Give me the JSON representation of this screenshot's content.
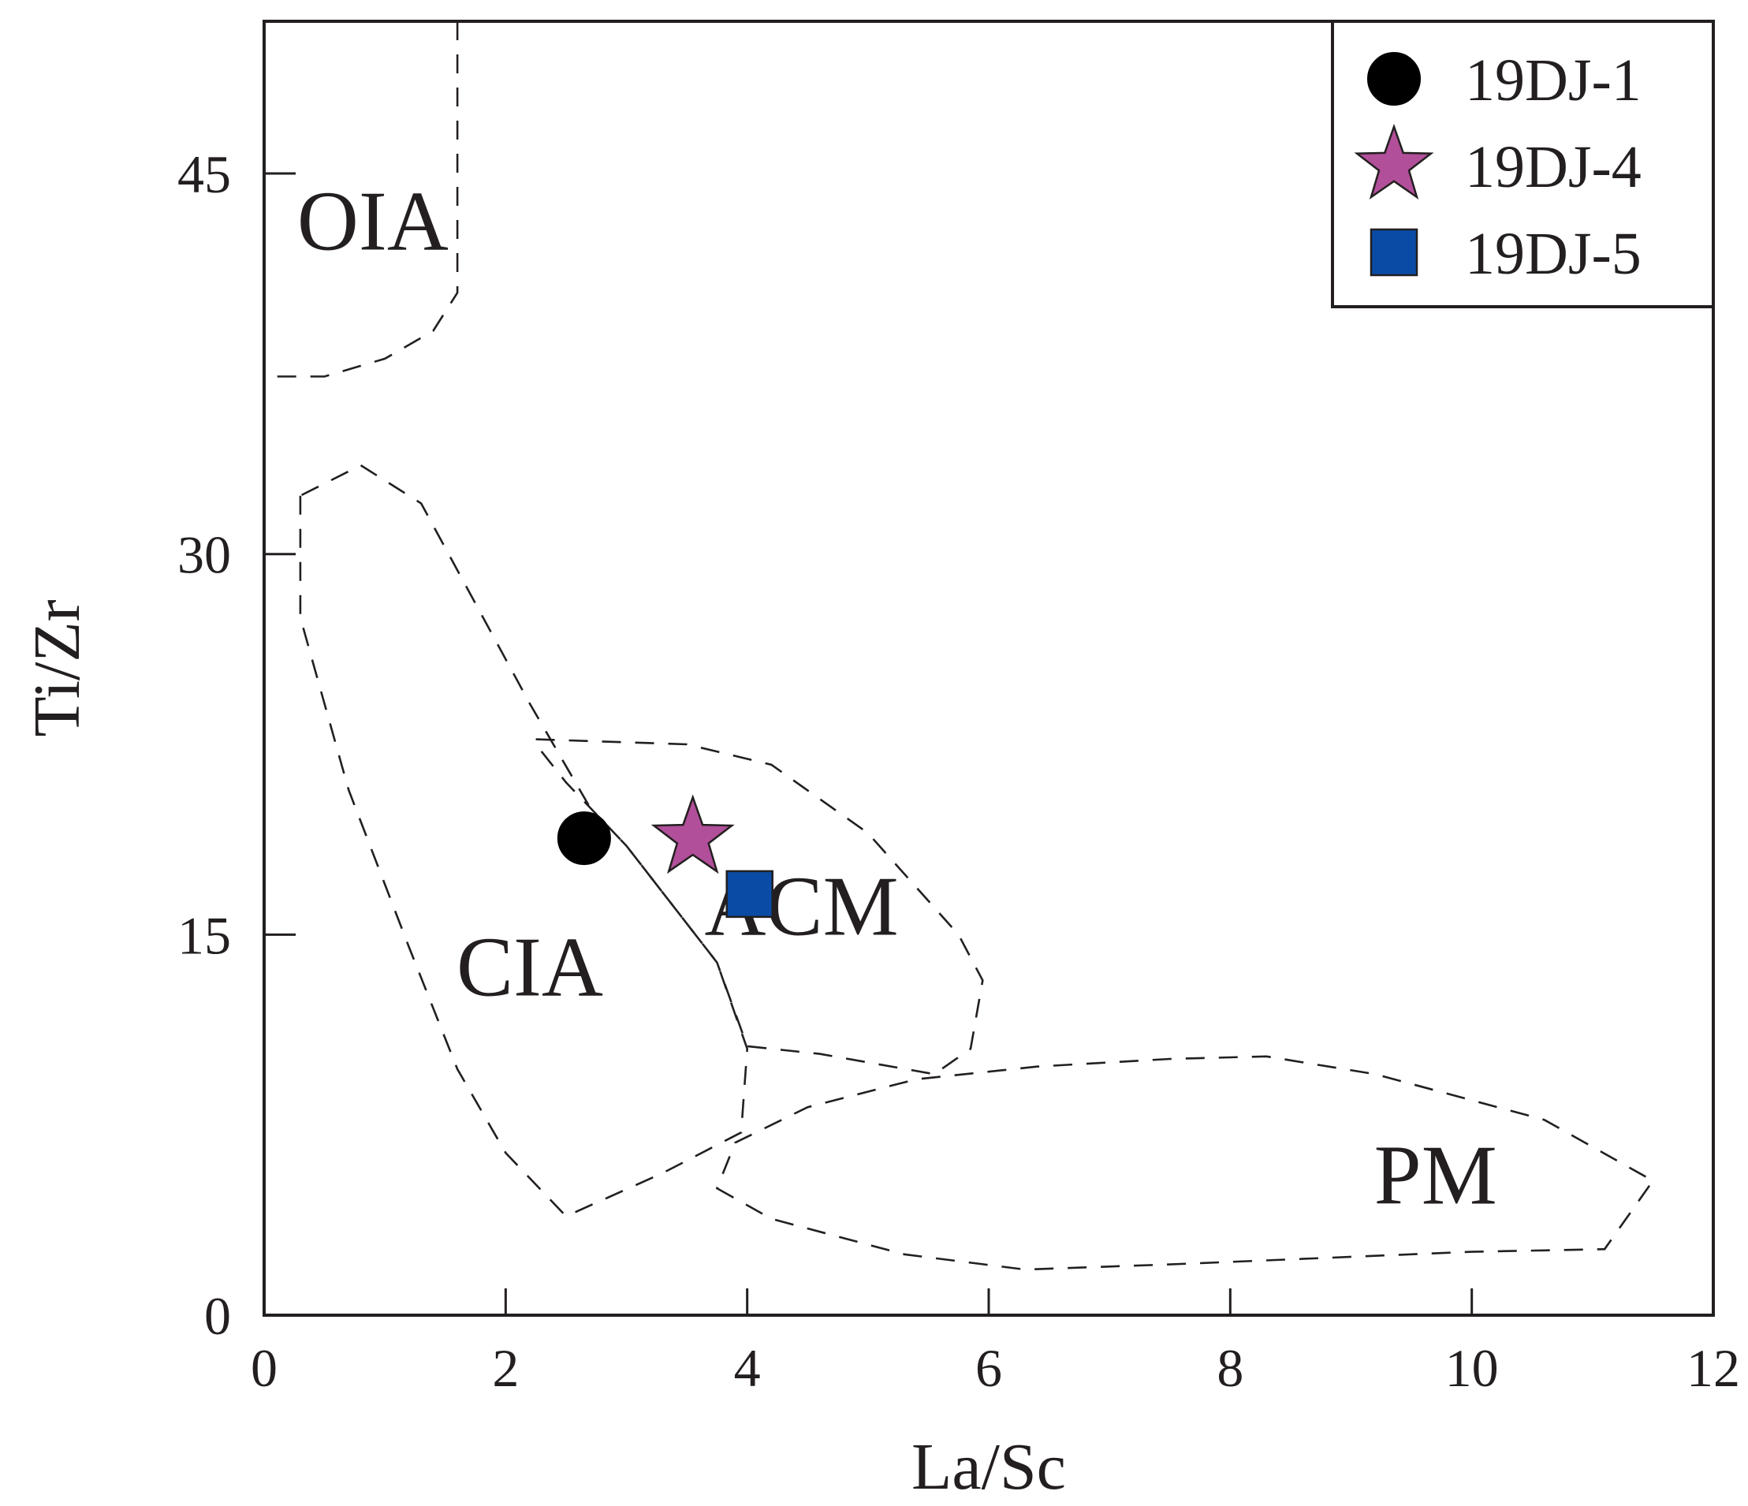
{
  "chart_data": {
    "type": "scatter",
    "title": "",
    "xlabel": "La/Sc",
    "ylabel": "Ti/Zr",
    "xlim": [
      0,
      12
    ],
    "ylim": [
      0,
      51
    ],
    "xticks": [
      0,
      2,
      4,
      6,
      8,
      10,
      12
    ],
    "yticks": [
      0,
      15,
      30,
      45
    ],
    "grid": false,
    "legend_position": "top-right",
    "series": [
      {
        "name": "19DJ-1",
        "marker": "circle",
        "color": "#000000",
        "x": [
          2.65
        ],
        "y": [
          18.8
        ]
      },
      {
        "name": "19DJ-4",
        "marker": "star",
        "color": "#b24f9a",
        "x": [
          3.55
        ],
        "y": [
          18.8
        ]
      },
      {
        "name": "19DJ-5",
        "marker": "square",
        "color": "#0a4ba5",
        "x": [
          4.02
        ],
        "y": [
          16.6
        ]
      }
    ],
    "regions": [
      {
        "name": "OIA",
        "label_at": [
          0.9,
          42.0
        ],
        "outline": [
          [
            1.6,
            51.0
          ],
          [
            1.6,
            40.3
          ],
          [
            1.4,
            38.8
          ],
          [
            1.0,
            37.7
          ],
          [
            0.5,
            37.0
          ],
          [
            0.0,
            37.0
          ]
        ],
        "closed": false
      },
      {
        "name": "CIA",
        "label_at": [
          2.2,
          12.6
        ],
        "outline": [
          [
            0.3,
            32.3
          ],
          [
            0.3,
            27.5
          ],
          [
            0.7,
            20.7
          ],
          [
            1.2,
            14.5
          ],
          [
            1.6,
            9.7
          ],
          [
            2.0,
            6.4
          ],
          [
            2.5,
            3.9
          ],
          [
            3.3,
            5.6
          ],
          [
            3.95,
            7.2
          ],
          [
            4.0,
            10.5
          ],
          [
            3.75,
            13.9
          ],
          [
            3.0,
            18.5
          ],
          [
            2.7,
            20.0
          ],
          [
            2.2,
            24.1
          ],
          [
            1.3,
            32.0
          ],
          [
            0.8,
            33.5
          ]
        ],
        "closed": true
      },
      {
        "name": "ACM",
        "label_at": [
          4.45,
          15.0
        ],
        "outline": [
          [
            2.25,
            22.7
          ],
          [
            3.5,
            22.5
          ],
          [
            4.2,
            21.7
          ],
          [
            5.0,
            19.0
          ],
          [
            5.75,
            15.0
          ],
          [
            5.95,
            13.2
          ],
          [
            5.85,
            10.5
          ],
          [
            5.55,
            9.5
          ],
          [
            4.6,
            10.3
          ],
          [
            4.0,
            10.6
          ],
          [
            3.75,
            13.9
          ],
          [
            3.0,
            18.5
          ],
          [
            2.5,
            21.0
          ],
          [
            2.3,
            22.2
          ]
        ],
        "closed": true
      },
      {
        "name": "PM",
        "label_at": [
          9.7,
          4.4
        ],
        "outline": [
          [
            3.75,
            5.0
          ],
          [
            4.2,
            3.8
          ],
          [
            5.3,
            2.4
          ],
          [
            6.3,
            1.8
          ],
          [
            7.5,
            2.0
          ],
          [
            8.5,
            2.2
          ],
          [
            10.0,
            2.5
          ],
          [
            11.1,
            2.6
          ],
          [
            11.5,
            5.3
          ],
          [
            10.6,
            7.7
          ],
          [
            9.2,
            9.5
          ],
          [
            8.3,
            10.2
          ],
          [
            7.5,
            10.1
          ],
          [
            6.4,
            9.8
          ],
          [
            5.4,
            9.3
          ],
          [
            4.5,
            8.2
          ],
          [
            3.9,
            6.8
          ]
        ],
        "closed": true
      }
    ]
  }
}
